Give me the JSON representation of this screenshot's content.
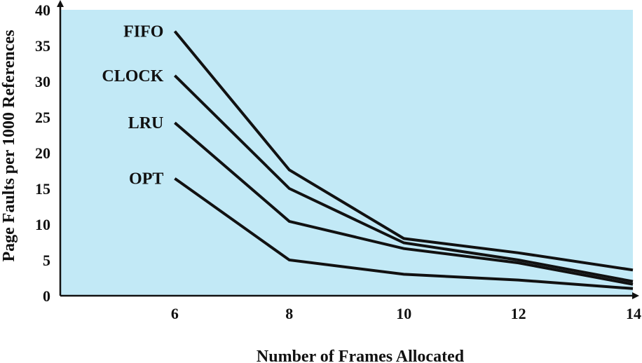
{
  "chart_data": {
    "type": "line",
    "title": "",
    "xlabel": "Number of Frames Allocated",
    "ylabel": "Page Faults per 1000 References",
    "x": [
      6,
      8,
      10,
      12,
      14
    ],
    "xlim": [
      4,
      14
    ],
    "ylim": [
      0,
      40
    ],
    "x_ticks": [
      6,
      8,
      10,
      12,
      14
    ],
    "y_ticks": [
      0,
      5,
      10,
      15,
      20,
      25,
      30,
      35,
      40
    ],
    "grid": false,
    "plot_background": "#c2e9f6",
    "line_color": "#111111",
    "series": [
      {
        "name": "FIFO",
        "values": [
          37.0,
          17.6,
          8.0,
          6.0,
          3.6
        ]
      },
      {
        "name": "CLOCK",
        "values": [
          30.8,
          15.0,
          7.4,
          5.0,
          2.0
        ]
      },
      {
        "name": "LRU",
        "values": [
          24.2,
          10.4,
          6.6,
          4.6,
          1.6
        ]
      },
      {
        "name": "OPT",
        "values": [
          16.4,
          5.0,
          3.0,
          2.2,
          1.0
        ]
      }
    ]
  }
}
